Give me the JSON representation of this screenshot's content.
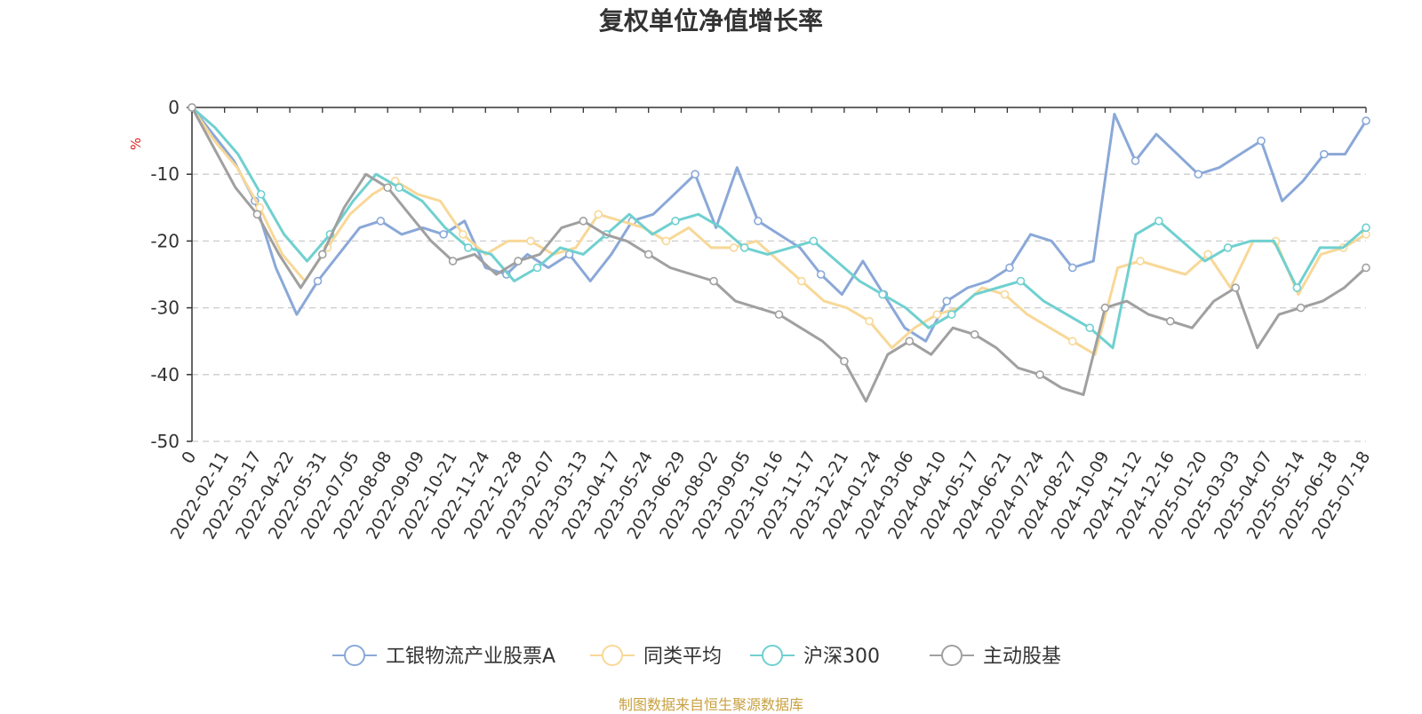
{
  "title": "复权单位净值增长率",
  "source": "制图数据来自恒生聚源数据库",
  "chart_data": {
    "type": "line",
    "title": "复权单位净值增长率",
    "ylabel": "%",
    "ylim": [
      -50,
      0
    ],
    "yticks": [
      0,
      -10,
      -20,
      -30,
      -40,
      -50
    ],
    "grid": true,
    "legend_position": "bottom",
    "x_ticks": [
      "0",
      "2022-02-11",
      "2022-03-17",
      "2022-04-22",
      "2022-05-31",
      "2022-07-05",
      "2022-08-08",
      "2022-09-09",
      "2022-10-21",
      "2022-11-24",
      "2022-12-28",
      "2023-02-07",
      "2023-03-13",
      "2023-04-17",
      "2023-05-24",
      "2023-06-29",
      "2023-08-02",
      "2023-09-05",
      "2023-10-16",
      "2023-11-17",
      "2023-12-21",
      "2024-01-24",
      "2024-03-06",
      "2024-04-10",
      "2024-05-17",
      "2024-06-21",
      "2024-07-24",
      "2024-08-27",
      "2024-10-09",
      "2024-11-12",
      "2024-12-16",
      "2025-01-20",
      "2025-03-03",
      "2025-04-07",
      "2025-05-14",
      "2025-06-18",
      "2025-07-18"
    ],
    "series": [
      {
        "name": "工银物流产业股票A",
        "color": "#8aa8d8",
        "values": [
          0,
          -4,
          -8,
          -14,
          -24,
          -31,
          -26,
          -22,
          -18,
          -17,
          -19,
          -18,
          -19,
          -17,
          -24,
          -25,
          -22,
          -24,
          -22,
          -26,
          -22,
          -17,
          -16,
          -13,
          -10,
          -18,
          -9,
          -17,
          -19,
          -21,
          -25,
          -28,
          -23,
          -28,
          -33,
          -35,
          -29,
          -27,
          -26,
          -24,
          -19,
          -20,
          -24,
          -23,
          -1,
          -8,
          -4,
          -7,
          -10,
          -9,
          -7,
          -5,
          -14,
          -11,
          -7,
          -7,
          -2
        ]
      },
      {
        "name": "同类平均",
        "color": "#f8d898",
        "values": [
          0,
          -5,
          -9,
          -15,
          -22,
          -26,
          -21,
          -16,
          -13,
          -11,
          -13,
          -14,
          -19,
          -22,
          -20,
          -20,
          -22,
          -21,
          -16,
          -17,
          -18,
          -20,
          -18,
          -21,
          -21,
          -20,
          -23,
          -26,
          -29,
          -30,
          -32,
          -36,
          -33,
          -31,
          -30,
          -27,
          -28,
          -31,
          -33,
          -35,
          -37,
          -24,
          -23,
          -24,
          -25,
          -22,
          -27,
          -20,
          -20,
          -28,
          -22,
          -21,
          -19
        ]
      },
      {
        "name": "沪深300",
        "color": "#70d0d0",
        "values": [
          0,
          -3,
          -7,
          -13,
          -19,
          -23,
          -19,
          -14,
          -10,
          -12,
          -14,
          -18,
          -21,
          -22,
          -26,
          -24,
          -21,
          -22,
          -19,
          -16,
          -19,
          -17,
          -16,
          -18,
          -21,
          -22,
          -21,
          -20,
          -23,
          -26,
          -28,
          -30,
          -33,
          -31,
          -28,
          -27,
          -26,
          -29,
          -31,
          -33,
          -36,
          -19,
          -17,
          -20,
          -23,
          -21,
          -20,
          -20,
          -27,
          -21,
          -21,
          -18
        ]
      },
      {
        "name": "主动股基",
        "color": "#a0a0a0",
        "values": [
          0,
          -6,
          -12,
          -16,
          -22,
          -27,
          -22,
          -15,
          -10,
          -12,
          -16,
          -20,
          -23,
          -22,
          -25,
          -23,
          -22,
          -18,
          -17,
          -19,
          -20,
          -22,
          -24,
          -25,
          -26,
          -29,
          -30,
          -31,
          -33,
          -35,
          -38,
          -44,
          -37,
          -35,
          -37,
          -33,
          -34,
          -36,
          -39,
          -40,
          -42,
          -43,
          -30,
          -29,
          -31,
          -32,
          -33,
          -29,
          -27,
          -36,
          -31,
          -30,
          -29,
          -27,
          -24
        ]
      }
    ]
  }
}
